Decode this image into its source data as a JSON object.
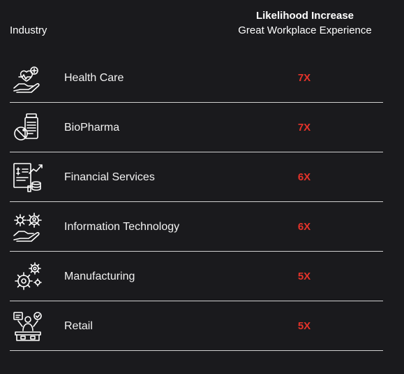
{
  "header": {
    "industry_label": "Industry",
    "metric_line1": "Likelihood Increase",
    "metric_line2": "Great Workplace Experience"
  },
  "accent_color": "#e5332a",
  "rows": [
    {
      "icon": "health-care-icon",
      "name": "Health Care",
      "value": "7X"
    },
    {
      "icon": "biopharma-icon",
      "name": "BioPharma",
      "value": "7X"
    },
    {
      "icon": "financial-services-icon",
      "name": "Financial Services",
      "value": "6X"
    },
    {
      "icon": "information-technology-icon",
      "name": "Information Technology",
      "value": "6X"
    },
    {
      "icon": "manufacturing-icon",
      "name": "Manufacturing",
      "value": "5X"
    },
    {
      "icon": "retail-icon",
      "name": "Retail",
      "value": "5X"
    }
  ]
}
